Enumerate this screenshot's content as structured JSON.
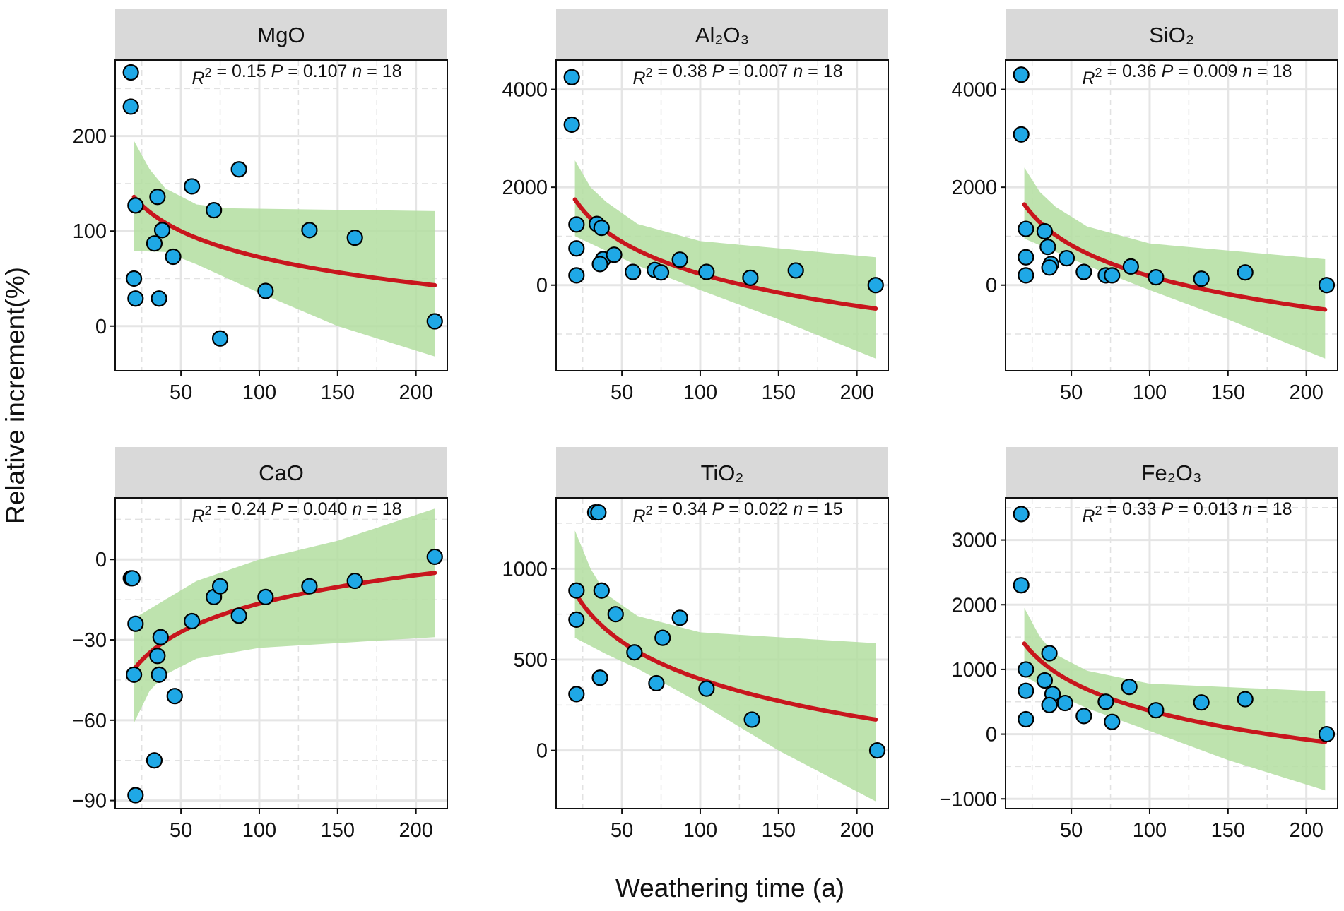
{
  "figure": {
    "ylabel": "Relative increment(%)",
    "xlabel": "Weathering time (a)"
  },
  "colors": {
    "strip": "#d9d9d9",
    "band": "#b3deA0",
    "fit": "#c8161d",
    "point": "#1fa8e6",
    "point_edge": "#000000",
    "grid_major": "#e5e5e5",
    "grid_minor": "#e2e2e2"
  },
  "chart_data": [
    {
      "type": "scatter",
      "title": "MgO",
      "stats": {
        "r2": "0.15",
        "p": "0.107",
        "n": "18"
      },
      "xlim": [
        8,
        220
      ],
      "ylim": [
        -47,
        280
      ],
      "xticks": [
        50,
        100,
        150,
        200
      ],
      "yticks": [
        0,
        100,
        200
      ],
      "xminor": [
        25,
        75,
        125,
        175
      ],
      "yminor": [
        50,
        150,
        250
      ],
      "points": [
        [
          18,
          267
        ],
        [
          18,
          231
        ],
        [
          21,
          127
        ],
        [
          20,
          50
        ],
        [
          21,
          29
        ],
        [
          35,
          136
        ],
        [
          38,
          101
        ],
        [
          33,
          87
        ],
        [
          36,
          29
        ],
        [
          45,
          73
        ],
        [
          57,
          147
        ],
        [
          71,
          122
        ],
        [
          75,
          -13
        ],
        [
          87,
          165
        ],
        [
          104,
          37
        ],
        [
          132,
          101
        ],
        [
          161,
          93
        ],
        [
          212,
          5
        ]
      ],
      "fit": {
        "x0": 20,
        "x1": 212,
        "y0": 136,
        "y1": 43
      },
      "band": {
        "upper": [
          [
            20,
            195
          ],
          [
            30,
            165
          ],
          [
            40,
            145
          ],
          [
            60,
            128
          ],
          [
            80,
            124
          ],
          [
            212,
            121
          ]
        ],
        "lower": [
          [
            20,
            79
          ],
          [
            40,
            78
          ],
          [
            60,
            65
          ],
          [
            100,
            35
          ],
          [
            150,
            0
          ],
          [
            212,
            -32
          ]
        ]
      }
    },
    {
      "type": "scatter",
      "title": "Al₂O₃",
      "stats": {
        "r2": "0.38",
        "p": "0.007",
        "n": "18"
      },
      "xlim": [
        8,
        220
      ],
      "ylim": [
        -1750,
        4600
      ],
      "xticks": [
        50,
        100,
        150,
        200
      ],
      "yticks": [
        0,
        2000,
        4000
      ],
      "xminor": [
        25,
        75,
        125,
        175
      ],
      "yminor": [
        -1000,
        1000,
        3000
      ],
      "points": [
        [
          18,
          4250
        ],
        [
          18,
          3280
        ],
        [
          21,
          1240
        ],
        [
          21,
          750
        ],
        [
          21,
          200
        ],
        [
          34,
          1250
        ],
        [
          37,
          1170
        ],
        [
          38,
          530
        ],
        [
          36,
          430
        ],
        [
          45,
          620
        ],
        [
          57,
          270
        ],
        [
          71,
          310
        ],
        [
          75,
          260
        ],
        [
          87,
          520
        ],
        [
          104,
          270
        ],
        [
          132,
          150
        ],
        [
          161,
          300
        ],
        [
          212,
          0
        ]
      ],
      "fit": {
        "x0": 20,
        "x1": 212,
        "y0": 1750,
        "y1": -480
      },
      "band": {
        "upper": [
          [
            20,
            2550
          ],
          [
            30,
            2000
          ],
          [
            40,
            1700
          ],
          [
            60,
            1250
          ],
          [
            100,
            900
          ],
          [
            212,
            570
          ]
        ],
        "lower": [
          [
            20,
            1000
          ],
          [
            40,
            700
          ],
          [
            60,
            400
          ],
          [
            100,
            -100
          ],
          [
            150,
            -700
          ],
          [
            212,
            -1500
          ]
        ]
      }
    },
    {
      "type": "scatter",
      "title": "SiO₂",
      "stats": {
        "r2": "0.36",
        "p": "0.009",
        "n": "18"
      },
      "xlim": [
        8,
        220
      ],
      "ylim": [
        -1750,
        4600
      ],
      "xticks": [
        50,
        100,
        150,
        200
      ],
      "yticks": [
        0,
        2000,
        4000
      ],
      "xminor": [
        25,
        75,
        125,
        175
      ],
      "yminor": [
        -1000,
        1000,
        3000
      ],
      "points": [
        [
          18,
          4300
        ],
        [
          18,
          3080
        ],
        [
          21,
          1150
        ],
        [
          21,
          570
        ],
        [
          21,
          200
        ],
        [
          33,
          1100
        ],
        [
          35,
          780
        ],
        [
          37,
          430
        ],
        [
          36,
          360
        ],
        [
          47,
          550
        ],
        [
          58,
          270
        ],
        [
          72,
          200
        ],
        [
          76,
          200
        ],
        [
          88,
          380
        ],
        [
          104,
          160
        ],
        [
          133,
          130
        ],
        [
          161,
          260
        ],
        [
          213,
          0
        ]
      ],
      "fit": {
        "x0": 20,
        "x1": 212,
        "y0": 1650,
        "y1": -500
      },
      "band": {
        "upper": [
          [
            20,
            2400
          ],
          [
            30,
            1900
          ],
          [
            40,
            1600
          ],
          [
            60,
            1200
          ],
          [
            100,
            850
          ],
          [
            212,
            530
          ]
        ],
        "lower": [
          [
            20,
            950
          ],
          [
            40,
            680
          ],
          [
            60,
            400
          ],
          [
            100,
            -100
          ],
          [
            150,
            -700
          ],
          [
            212,
            -1500
          ]
        ]
      }
    },
    {
      "type": "scatter",
      "title": "CaO",
      "stats": {
        "r2": "0.24",
        "p": "0.040",
        "n": "18"
      },
      "xlim": [
        8,
        220
      ],
      "ylim": [
        -93,
        23
      ],
      "xticks": [
        50,
        100,
        150,
        200
      ],
      "yticks": [
        -90,
        -60,
        -30,
        0
      ],
      "xminor": [
        25,
        75,
        125,
        175
      ],
      "yminor": [
        -75,
        -45,
        -15,
        15
      ],
      "points": [
        [
          18,
          -7
        ],
        [
          19,
          -7
        ],
        [
          21,
          -24
        ],
        [
          20,
          -43
        ],
        [
          21,
          -88
        ],
        [
          37,
          -29
        ],
        [
          35,
          -36
        ],
        [
          36,
          -43
        ],
        [
          33,
          -75
        ],
        [
          46,
          -51
        ],
        [
          57,
          -23
        ],
        [
          71,
          -14
        ],
        [
          75,
          -10
        ],
        [
          87,
          -21
        ],
        [
          104,
          -14
        ],
        [
          132,
          -10
        ],
        [
          161,
          -8
        ],
        [
          212,
          1
        ]
      ],
      "fit": {
        "x0": 20,
        "x1": 212,
        "y0": -41,
        "y1": -5
      },
      "band": {
        "upper": [
          [
            20,
            -22
          ],
          [
            40,
            -15
          ],
          [
            60,
            -8
          ],
          [
            100,
            0
          ],
          [
            150,
            7
          ],
          [
            212,
            19
          ]
        ],
        "lower": [
          [
            20,
            -61
          ],
          [
            30,
            -49
          ],
          [
            40,
            -43
          ],
          [
            60,
            -37
          ],
          [
            100,
            -33
          ],
          [
            212,
            -29
          ]
        ]
      }
    },
    {
      "type": "scatter",
      "title": "TiO₂",
      "stats": {
        "r2": "0.34",
        "p": "0.022",
        "n": "15"
      },
      "xlim": [
        8,
        220
      ],
      "ylim": [
        -320,
        1390
      ],
      "xticks": [
        50,
        100,
        150,
        200
      ],
      "yticks": [
        0,
        500,
        1000
      ],
      "xminor": [
        25,
        75,
        125,
        175
      ],
      "yminor": [
        250,
        750,
        1250
      ],
      "points": [
        [
          33,
          1310
        ],
        [
          35,
          1310
        ],
        [
          21,
          880
        ],
        [
          21,
          720
        ],
        [
          21,
          310
        ],
        [
          37,
          880
        ],
        [
          36,
          400
        ],
        [
          46,
          750
        ],
        [
          58,
          540
        ],
        [
          72,
          370
        ],
        [
          76,
          620
        ],
        [
          87,
          730
        ],
        [
          104,
          340
        ],
        [
          133,
          170
        ],
        [
          213,
          0
        ]
      ],
      "fit": {
        "x0": 20,
        "x1": 212,
        "y0": 870,
        "y1": 170
      },
      "band": {
        "upper": [
          [
            20,
            1210
          ],
          [
            30,
            1000
          ],
          [
            40,
            860
          ],
          [
            60,
            740
          ],
          [
            100,
            650
          ],
          [
            212,
            590
          ]
        ],
        "lower": [
          [
            20,
            620
          ],
          [
            40,
            530
          ],
          [
            60,
            450
          ],
          [
            100,
            260
          ],
          [
            150,
            0
          ],
          [
            212,
            -280
          ]
        ]
      }
    },
    {
      "type": "scatter",
      "title": "Fe₂O₃",
      "stats": {
        "r2": "0.33",
        "p": "0.013",
        "n": "18"
      },
      "xlim": [
        8,
        220
      ],
      "ylim": [
        -1150,
        3650
      ],
      "xticks": [
        50,
        100,
        150,
        200
      ],
      "yticks": [
        -1000,
        0,
        1000,
        2000,
        3000
      ],
      "xminor": [
        25,
        75,
        125,
        175
      ],
      "yminor": [
        -500,
        500,
        1500,
        2500,
        3500
      ],
      "points": [
        [
          18,
          3400
        ],
        [
          18,
          2300
        ],
        [
          21,
          1000
        ],
        [
          21,
          670
        ],
        [
          21,
          230
        ],
        [
          36,
          1250
        ],
        [
          33,
          830
        ],
        [
          38,
          620
        ],
        [
          36,
          450
        ],
        [
          46,
          480
        ],
        [
          58,
          280
        ],
        [
          72,
          500
        ],
        [
          76,
          190
        ],
        [
          87,
          730
        ],
        [
          104,
          370
        ],
        [
          133,
          490
        ],
        [
          161,
          540
        ],
        [
          213,
          0
        ]
      ],
      "fit": {
        "x0": 20,
        "x1": 212,
        "y0": 1400,
        "y1": -120
      },
      "band": {
        "upper": [
          [
            20,
            1950
          ],
          [
            30,
            1500
          ],
          [
            40,
            1230
          ],
          [
            60,
            980
          ],
          [
            100,
            780
          ],
          [
            212,
            660
          ]
        ],
        "lower": [
          [
            20,
            900
          ],
          [
            40,
            620
          ],
          [
            60,
            400
          ],
          [
            100,
            50
          ],
          [
            150,
            -400
          ],
          [
            212,
            -870
          ]
        ]
      }
    }
  ]
}
